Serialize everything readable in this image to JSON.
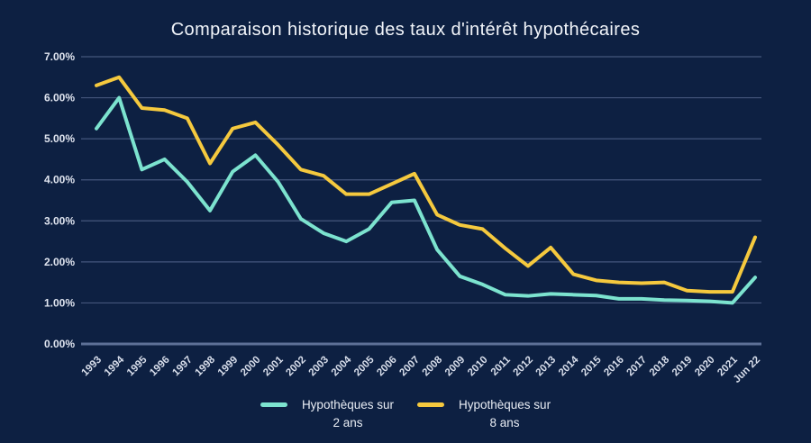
{
  "chart_data": {
    "type": "line",
    "title": "Comparaison historique des taux d'intérêt hypothécaires",
    "categories": [
      "1993",
      "1994",
      "1995",
      "1996",
      "1997",
      "1998",
      "1999",
      "2000",
      "2001",
      "2002",
      "2003",
      "2004",
      "2005",
      "2006",
      "2007",
      "2008",
      "2009",
      "2010",
      "2011",
      "2012",
      "2013",
      "2014",
      "2015",
      "2016",
      "2017",
      "2018",
      "2019",
      "2020",
      "2021",
      "Jun 22"
    ],
    "series": [
      {
        "name": "Hypothèques sur 2 ans",
        "legend_line1": "Hypothèques sur",
        "legend_line2": "2 ans",
        "color": "#7CE3CF",
        "values": [
          5.25,
          6.0,
          4.25,
          4.5,
          3.95,
          3.25,
          4.2,
          4.6,
          3.95,
          3.05,
          2.7,
          2.5,
          2.8,
          3.45,
          3.5,
          2.3,
          1.65,
          1.45,
          1.2,
          1.17,
          1.22,
          1.2,
          1.18,
          1.1,
          1.1,
          1.07,
          1.06,
          1.04,
          1.0,
          1.62
        ]
      },
      {
        "name": "Hypothèques sur 8 ans",
        "legend_line1": "Hypothèques sur",
        "legend_line2": "8 ans",
        "color": "#F5C93E",
        "values": [
          6.3,
          6.5,
          5.75,
          5.7,
          5.5,
          4.4,
          5.25,
          5.4,
          4.85,
          4.25,
          4.1,
          3.65,
          3.65,
          3.9,
          4.15,
          3.15,
          2.9,
          2.8,
          2.33,
          1.9,
          2.35,
          1.7,
          1.55,
          1.5,
          1.48,
          1.5,
          1.3,
          1.27,
          1.27,
          2.6
        ]
      }
    ],
    "y_axis": {
      "min": 0,
      "max": 7,
      "tick_step": 1,
      "tick_labels": [
        "0.00%",
        "1.00%",
        "2.00%",
        "3.00%",
        "4.00%",
        "5.00%",
        "6.00%",
        "7.00%"
      ]
    },
    "xlabel": "",
    "ylabel": "",
    "grid": true,
    "legend_position": "bottom"
  },
  "theme": {
    "background": "#0D2042",
    "grid_color": "#44567C",
    "axis_color": "#5D7097",
    "title_color": "#F2F5FA",
    "tick_text_color": "#DFE4EF",
    "legend_text_color": "#E9EDF4"
  }
}
